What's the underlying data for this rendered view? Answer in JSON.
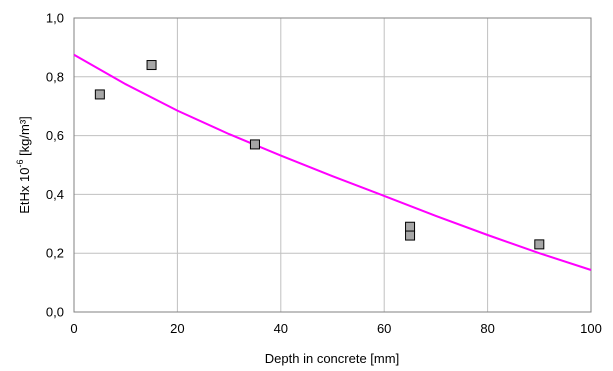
{
  "chart_data": {
    "type": "scatter",
    "title": "",
    "xlabel": "Depth in concrete [mm]",
    "ylabel": {
      "prefix": "EtHx 10",
      "exponent": "-6",
      "suffix": " [kg/m³]"
    },
    "xlim": [
      0,
      100
    ],
    "ylim": [
      0,
      1.0
    ],
    "x_ticks": [
      0,
      20,
      40,
      60,
      80,
      100
    ],
    "x_tick_labels": [
      "0",
      "20",
      "40",
      "60",
      "80",
      "100"
    ],
    "y_ticks": [
      0,
      0.2,
      0.4,
      0.6,
      0.8,
      1.0
    ],
    "y_tick_labels": [
      "0,0",
      "0,2",
      "0,4",
      "0,6",
      "0,8",
      "1,0"
    ],
    "grid": true,
    "legend": "none",
    "series": [
      {
        "kind": "points",
        "marker": "square",
        "color": "#a6a6a6",
        "edge_color": "#000000",
        "x": [
          5,
          15,
          35,
          65,
          65,
          90
        ],
        "y": [
          0.74,
          0.84,
          0.57,
          0.29,
          0.26,
          0.23
        ]
      },
      {
        "kind": "trend-line",
        "color": "#ff00ff",
        "x": [
          0,
          10,
          20,
          30,
          40,
          50,
          60,
          70,
          80,
          90,
          100
        ],
        "y": [
          0.875,
          0.775,
          0.685,
          0.605,
          0.532,
          0.462,
          0.395,
          0.327,
          0.262,
          0.2,
          0.143
        ]
      }
    ]
  }
}
